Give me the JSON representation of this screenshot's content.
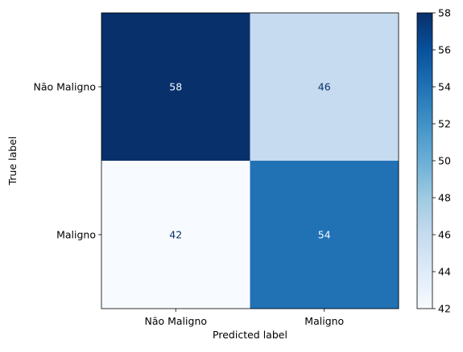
{
  "chart_data": {
    "type": "heatmap",
    "xlabel": "Predicted label",
    "ylabel": "True label",
    "x_categories": [
      "Não Maligno",
      "Maligno"
    ],
    "y_categories": [
      "Não Maligno",
      "Maligno"
    ],
    "matrix": [
      [
        58,
        46
      ],
      [
        42,
        54
      ]
    ],
    "colormap": "Blues",
    "color_range": [
      42,
      58
    ],
    "colorbar_ticks": [
      42,
      44,
      46,
      48,
      50,
      52,
      54,
      56,
      58
    ],
    "legend_placement": "right",
    "grid": false
  }
}
